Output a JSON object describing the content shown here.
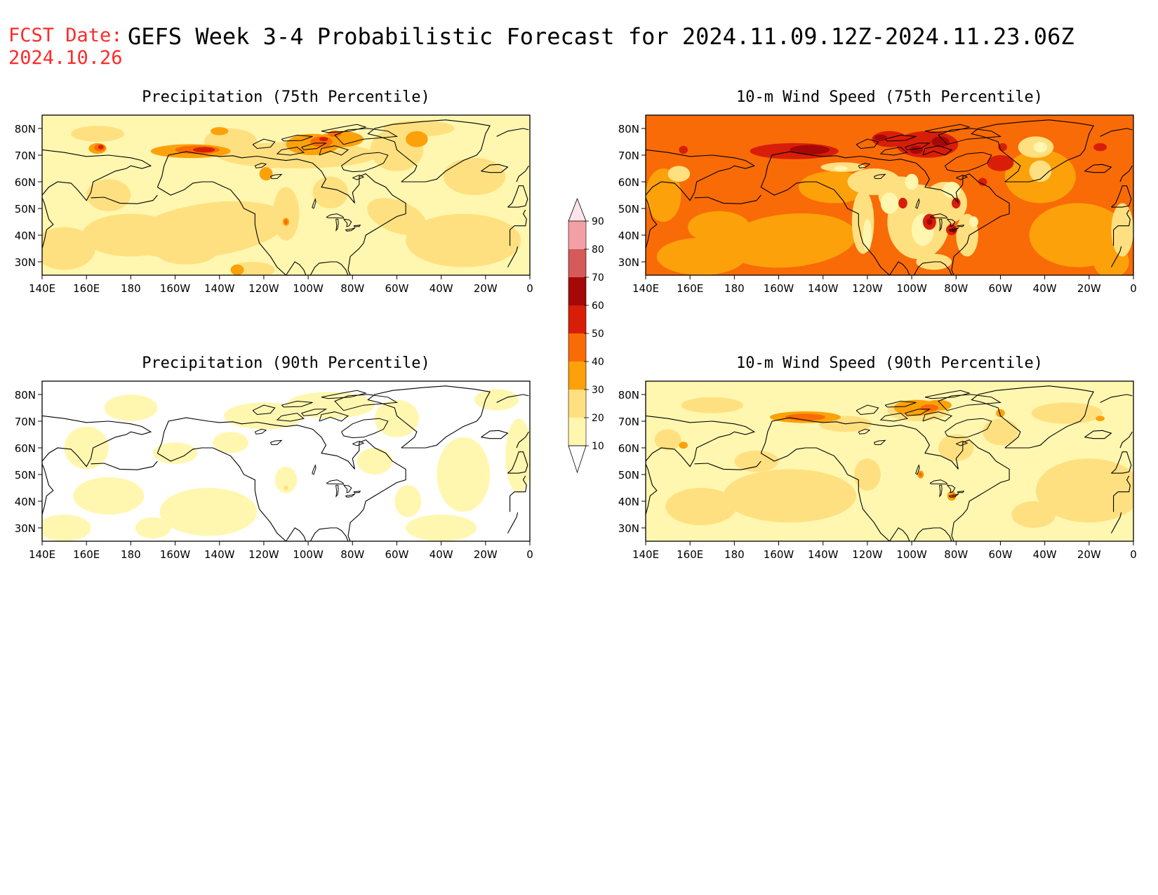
{
  "header": {
    "fcst_label": "FCST Date:",
    "fcst_date": "2024.10.26",
    "title": "GEFS Week 3-4 Probabilistic Forecast for 2024.11.09.12Z-2024.11.23.06Z"
  },
  "axes": {
    "lon_labels": [
      "140E",
      "160E",
      "180",
      "160W",
      "140W",
      "120W",
      "100W",
      "80W",
      "60W",
      "40W",
      "20W",
      "0"
    ],
    "lat_labels": [
      "80N",
      "70N",
      "60N",
      "50N",
      "40N",
      "30N"
    ]
  },
  "panels": [
    {
      "id": "precip75",
      "title": "Precipitation (75th Percentile)",
      "variable": "precipitation",
      "percentile": "75th",
      "intensity": "moderate"
    },
    {
      "id": "wind75",
      "title": "10-m Wind Speed (75th Percentile)",
      "variable": "10-m wind speed",
      "percentile": "75th",
      "intensity": "high"
    },
    {
      "id": "precip90",
      "title": "Precipitation (90th Percentile)",
      "variable": "precipitation",
      "percentile": "90th",
      "intensity": "low"
    },
    {
      "id": "wind90",
      "title": "10-m Wind Speed (90th Percentile)",
      "variable": "10-m wind speed",
      "percentile": "90th",
      "intensity": "moderate-low"
    }
  ],
  "colorbar": {
    "labels": [
      "90",
      "80",
      "70",
      "60",
      "50",
      "40",
      "30",
      "20",
      "10"
    ],
    "colors": {
      "below_10": "#ffffff",
      "10_20": "#fff7b0",
      "20_30": "#ffe080",
      "30_40": "#fca10a",
      "40_50": "#f96b07",
      "50_60": "#d81e08",
      "60_70": "#a60808",
      "70_80": "#d55a5a",
      "80_90": "#f2a0a6",
      "above_90": "#fde4e8"
    }
  }
}
